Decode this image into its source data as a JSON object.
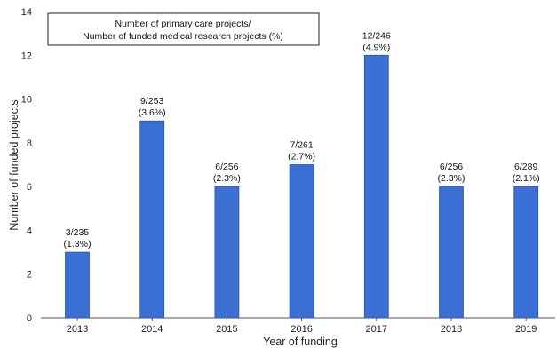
{
  "chart_data": {
    "type": "bar",
    "categories": [
      "2013",
      "2014",
      "2015",
      "2016",
      "2017",
      "2018",
      "2019"
    ],
    "values": [
      3,
      9,
      6,
      7,
      12,
      6,
      6
    ],
    "data_labels": [
      [
        "3/235",
        "(1.3%)"
      ],
      [
        "9/253",
        "(3.6%)"
      ],
      [
        "6/256",
        "(2.3%)"
      ],
      [
        "7/261",
        "(2.7%)"
      ],
      [
        "12/246",
        "(4.9%)"
      ],
      [
        "6/256",
        "(2.3%)"
      ],
      [
        "6/289",
        "(2.1%)"
      ]
    ],
    "legend_lines": [
      "Number of primary care projects/",
      "Number of funded medical research projects (%)"
    ],
    "legend_position": "top-left",
    "xlabel": "Year of funding",
    "ylabel": "Number of  funded projects",
    "ylim": [
      0,
      14
    ],
    "yticks": [
      0,
      2,
      4,
      6,
      8,
      10,
      12,
      14
    ],
    "grid": false,
    "bar_color": "#3b6fd4",
    "bar_edge_color": "#2a55b0"
  }
}
